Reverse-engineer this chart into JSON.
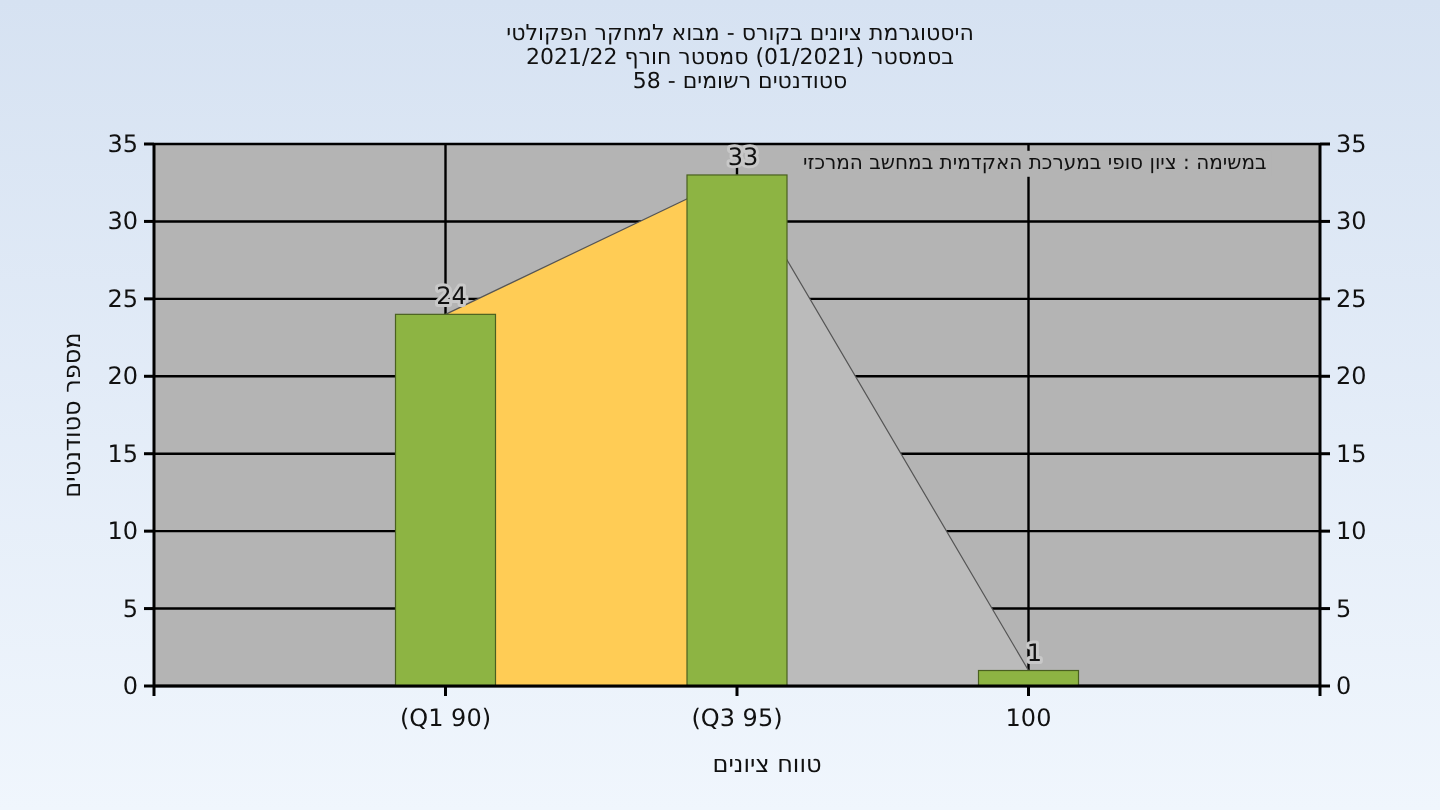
{
  "chart_data": {
    "type": "bar",
    "title": "היסטוגרמת ציונים בקורס - מבוא למחקר הפקולטי",
    "subtitle": "בסמסטר  (01/2021)  סמסטר חורף 2021/22",
    "annotations": [
      "סטודנטים רשומים - 58",
      "במשימה : ציון סופי במערכת האקדמית במחשב המרכזי"
    ],
    "xlabel": "טווח ציונים",
    "ylabel": "מספר סטודנטים",
    "categories": [
      "(Q1 90)",
      "(Q3 95)",
      "100"
    ],
    "series": [
      {
        "type": "area",
        "color": "#ffcc55",
        "values": [
          24,
          33,
          null
        ]
      },
      {
        "type": "area",
        "color": "#bbbbbb",
        "values": [
          null,
          33,
          1
        ]
      },
      {
        "color": "#8db443",
        "values": [
          24,
          33,
          1
        ],
        "value_labels": [
          "24",
          "33",
          "1"
        ]
      }
    ],
    "ylim": [
      0,
      35
    ],
    "yticks": [
      0,
      5,
      10,
      15,
      20,
      25,
      30,
      35
    ],
    "y2lim": [
      0,
      35
    ],
    "y2ticks": [
      0,
      5,
      10,
      15,
      20,
      25,
      30,
      35
    ],
    "grid": true
  }
}
